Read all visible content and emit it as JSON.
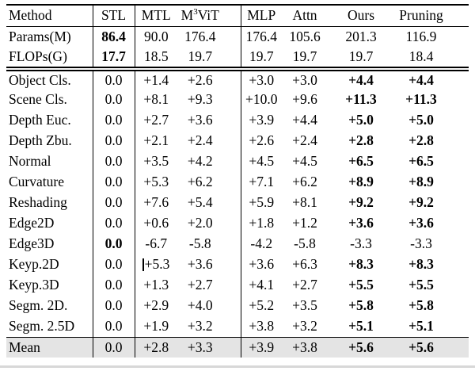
{
  "table": {
    "header": {
      "method": "Method",
      "stl": "STL",
      "mtl": "MTL",
      "m3vit": {
        "base": "M",
        "sup": "3",
        "rest": "ViT"
      },
      "mlp": "MLP",
      "attn": "Attn",
      "ours": "Ours",
      "pruning": "Pruning"
    },
    "info_rows": [
      {
        "label": "Params(M)",
        "values": [
          "86.4",
          "90.0",
          "176.4",
          "176.4",
          "105.6",
          "201.3",
          "116.9"
        ],
        "bold": [
          0
        ]
      },
      {
        "label": "FLOPs(G)",
        "values": [
          "17.7",
          "18.5",
          "19.7",
          "19.7",
          "19.7",
          "19.7",
          "18.4"
        ],
        "bold": [
          0
        ]
      }
    ],
    "task_rows": [
      {
        "label": "Object Cls.",
        "values": [
          "0.0",
          "+1.4",
          "+2.6",
          "+3.0",
          "+3.0",
          "+4.4",
          "+4.4"
        ],
        "bold": [
          5,
          6
        ]
      },
      {
        "label": "Scene Cls.",
        "values": [
          "0.0",
          "+8.1",
          "+9.3",
          "+10.0",
          "+9.6",
          "+11.3",
          "+11.3"
        ],
        "bold": [
          5,
          6
        ]
      },
      {
        "label": "Depth Euc.",
        "values": [
          "0.0",
          "+2.7",
          "+3.6",
          "+3.9",
          "+4.4",
          "+5.0",
          "+5.0"
        ],
        "bold": [
          5,
          6
        ]
      },
      {
        "label": "Depth Zbu.",
        "values": [
          "0.0",
          "+2.1",
          "+2.4",
          "+2.6",
          "+2.4",
          "+2.8",
          "+2.8"
        ],
        "bold": [
          5,
          6
        ]
      },
      {
        "label": "Normal",
        "values": [
          "0.0",
          "+3.5",
          "+4.2",
          "+4.5",
          "+4.5",
          "+6.5",
          "+6.5"
        ],
        "bold": [
          5,
          6
        ]
      },
      {
        "label": "Curvature",
        "values": [
          "0.0",
          "+5.3",
          "+6.2",
          "+7.1",
          "+6.2",
          "+8.9",
          "+8.9"
        ],
        "bold": [
          5,
          6
        ]
      },
      {
        "label": "Reshading",
        "values": [
          "0.0",
          "+7.6",
          "+5.4",
          "+5.9",
          "+8.1",
          "+9.2",
          "+9.2"
        ],
        "bold": [
          5,
          6
        ]
      },
      {
        "label": "Edge2D",
        "values": [
          "0.0",
          "+0.6",
          "+2.0",
          "+1.8",
          "+1.2",
          "+3.6",
          "+3.6"
        ],
        "bold": [
          5,
          6
        ]
      },
      {
        "label": "Edge3D",
        "values": [
          "0.0",
          "-6.7",
          "-5.8",
          "-4.2",
          "-5.8",
          "-3.3",
          "-3.3"
        ],
        "bold": [
          0
        ]
      },
      {
        "label": "Keyp.2D",
        "values": [
          "0.0",
          "+5.3",
          "+3.6",
          "+3.6",
          "+6.3",
          "+8.3",
          "+8.3"
        ],
        "bold": [
          5,
          6
        ],
        "artifact": true
      },
      {
        "label": "Keyp.3D",
        "values": [
          "0.0",
          "+1.3",
          "+2.7",
          "+4.1",
          "+2.7",
          "+5.5",
          "+5.5"
        ],
        "bold": [
          5,
          6
        ]
      },
      {
        "label": "Segm. 2D.",
        "values": [
          "0.0",
          "+2.9",
          "+4.0",
          "+5.2",
          "+3.5",
          "+5.8",
          "+5.8"
        ],
        "bold": [
          5,
          6
        ]
      },
      {
        "label": "Segm. 2.5D",
        "values": [
          "0.0",
          "+1.9",
          "+3.2",
          "+3.8",
          "+3.2",
          "+5.1",
          "+5.1"
        ],
        "bold": [
          5,
          6
        ]
      }
    ],
    "mean_row": {
      "label": "Mean",
      "values": [
        "0.0",
        "+2.8",
        "+3.3",
        "+3.9",
        "+3.8",
        "+5.6",
        "+5.6"
      ],
      "bold": [
        5,
        6
      ]
    },
    "colors": {
      "text": "#000000",
      "rule": "#000000",
      "mean_row_bg": "#e4e4e4",
      "bottom_rule": "#d8d8d8"
    }
  }
}
